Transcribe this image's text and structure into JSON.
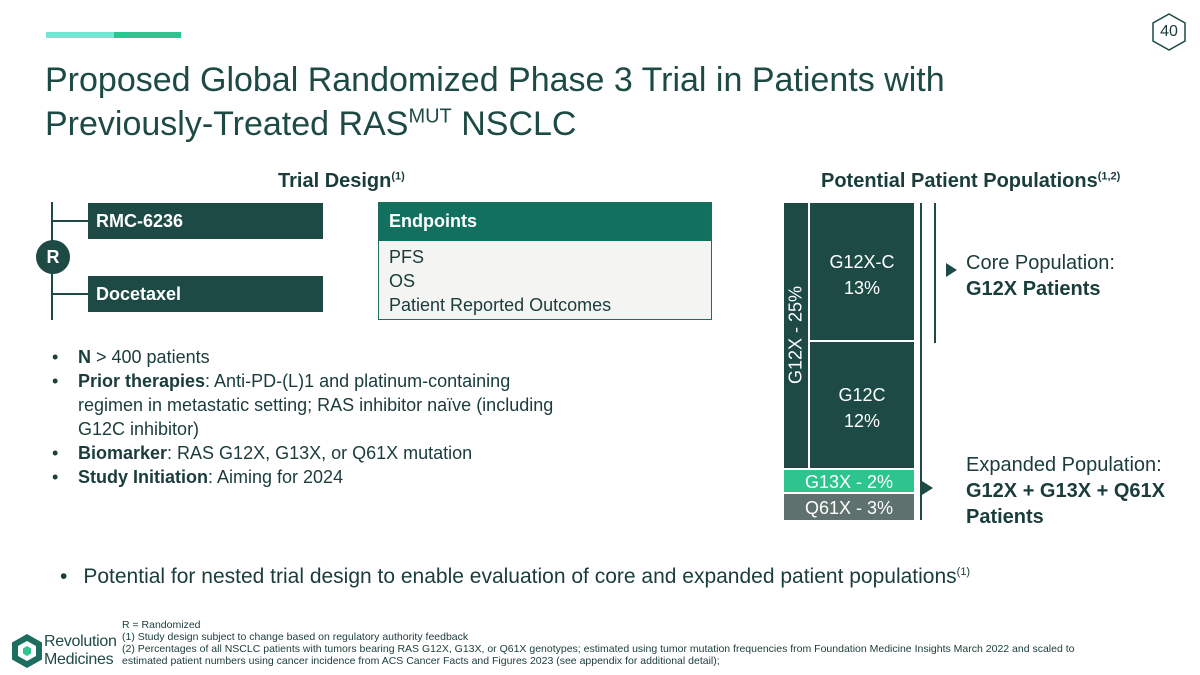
{
  "page_number": "40",
  "title": {
    "line1": "Proposed Global Randomized Phase 3 Trial in Patients with",
    "line2_pre": "Previously-Treated RAS",
    "line2_sup": "MUT",
    "line2_post": " NSCLC"
  },
  "trial_design": {
    "heading": "Trial Design",
    "heading_sup": "(1)",
    "randomized_label": "R",
    "arms": [
      "RMC-6236",
      "Docetaxel"
    ],
    "endpoints": {
      "heading": "Endpoints",
      "items": [
        "PFS",
        "OS",
        "Patient Reported Outcomes"
      ]
    }
  },
  "bullets": [
    {
      "bold": "N",
      "text": " > 400 patients"
    },
    {
      "bold": "Prior therapies",
      "text": ": Anti-PD-(L)1 and platinum-containing regimen in metastatic setting; RAS inhibitor naïve (including G12C inhibitor)"
    },
    {
      "bold": "Biomarker",
      "text": ": RAS G12X, G13X, or Q61X mutation"
    },
    {
      "bold": "Study Initiation",
      "text": ": Aiming for 2024"
    }
  ],
  "populations": {
    "heading": "Potential Patient Populations",
    "heading_sup": "(1,2)",
    "group_label": "G12X - 25%",
    "segments": [
      {
        "name": "G12X-C",
        "value": "13%",
        "color": "#1d4a45"
      },
      {
        "name": "G12C",
        "value": "12%",
        "color": "#1d4a45"
      },
      {
        "name": "G13X - 2%",
        "color": "#2ec48d"
      },
      {
        "name": "Q61X - 3%",
        "color": "#5f716d"
      }
    ],
    "core": {
      "label": "Core Population:",
      "value": "G12X Patients"
    },
    "expanded": {
      "label": "Expanded Population:",
      "value_line1": "G12X + G13X + Q61X",
      "value_line2": "Patients"
    }
  },
  "bottom_bullet": {
    "text": "Potential for nested trial design to enable evaluation of core and expanded patient populations",
    "sup": "(1)"
  },
  "footnotes": [
    "R = Randomized",
    "(1) Study design subject to change based on regulatory authority feedback",
    "(2) Percentages of all NSCLC patients with tumors bearing RAS G12X, G13X, or Q61X genotypes; estimated using tumor mutation frequencies from Foundation Medicine Insights March 2022 and scaled to estimated patient numbers using cancer incidence from ACS Cancer Facts and Figures 2023 (see appendix for additional detail);"
  ],
  "logo": {
    "line1": "Revolution",
    "line2": "Medicines"
  },
  "colors": {
    "dark_teal": "#1d4a45",
    "green": "#2ec48d",
    "light_teal": "#79e3d3",
    "gray": "#5f716d"
  }
}
